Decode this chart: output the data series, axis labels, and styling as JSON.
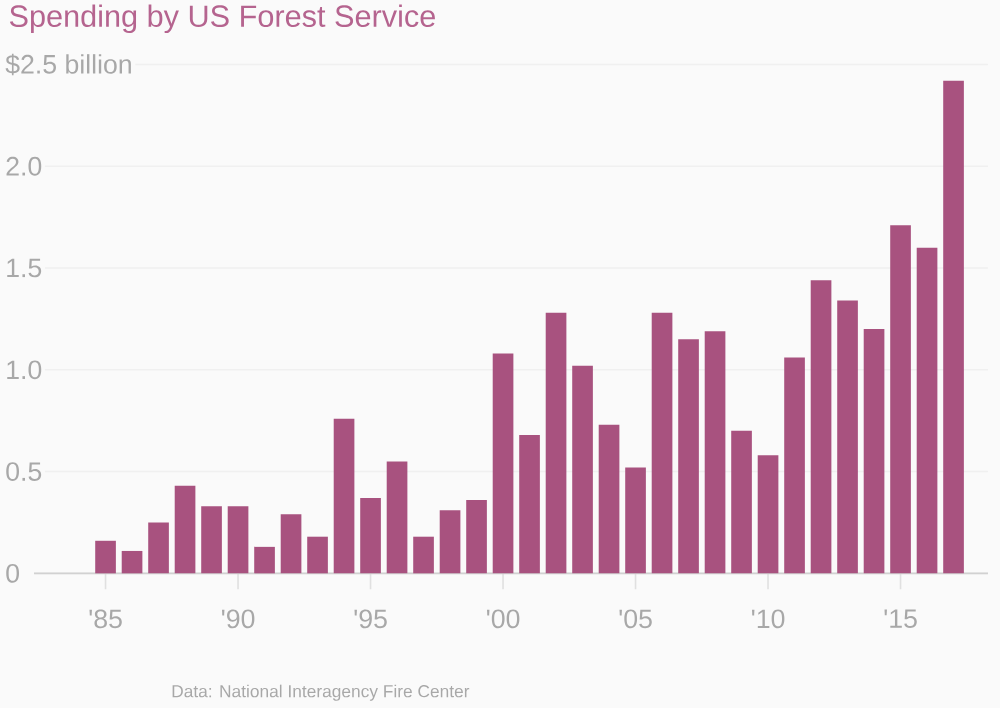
{
  "chart_data": {
    "type": "bar",
    "title": "Spending by US Forest Service",
    "x": [
      1985,
      1986,
      1987,
      1988,
      1989,
      1990,
      1991,
      1992,
      1993,
      1994,
      1995,
      1996,
      1997,
      1998,
      1999,
      2000,
      2001,
      2002,
      2003,
      2004,
      2005,
      2006,
      2007,
      2008,
      2009,
      2010,
      2011,
      2012,
      2013,
      2014,
      2015,
      2016,
      2017
    ],
    "values": [
      0.16,
      0.11,
      0.25,
      0.43,
      0.33,
      0.33,
      0.13,
      0.29,
      0.18,
      0.76,
      0.37,
      0.55,
      0.18,
      0.31,
      0.36,
      1.08,
      0.68,
      1.28,
      1.02,
      0.73,
      0.52,
      1.28,
      1.15,
      1.19,
      0.7,
      0.58,
      1.06,
      1.44,
      1.34,
      1.2,
      1.71,
      1.6,
      2.42
    ],
    "color": "#a8527f",
    "xlim": [
      1982.3,
      2018.3
    ],
    "xticks": [
      {
        "value": 1985,
        "label": "'85"
      },
      {
        "value": 1990,
        "label": "'90"
      },
      {
        "value": 1995,
        "label": "'95"
      },
      {
        "value": 2000,
        "label": "'00"
      },
      {
        "value": 2005,
        "label": "'05"
      },
      {
        "value": 2010,
        "label": "'10"
      },
      {
        "value": 2015,
        "label": "'15"
      }
    ],
    "ylim": [
      0,
      2.5
    ],
    "yticks": [
      0,
      0.5,
      {
        "value": 1.0,
        "label": "1.0"
      },
      1.5,
      {
        "value": 2.0,
        "label": "2.0"
      },
      {
        "value": 2.5,
        "label": "$2.5 billion"
      }
    ],
    "grid": "y",
    "annotations": [
      "Data: National Interagency Fire Center"
    ]
  }
}
